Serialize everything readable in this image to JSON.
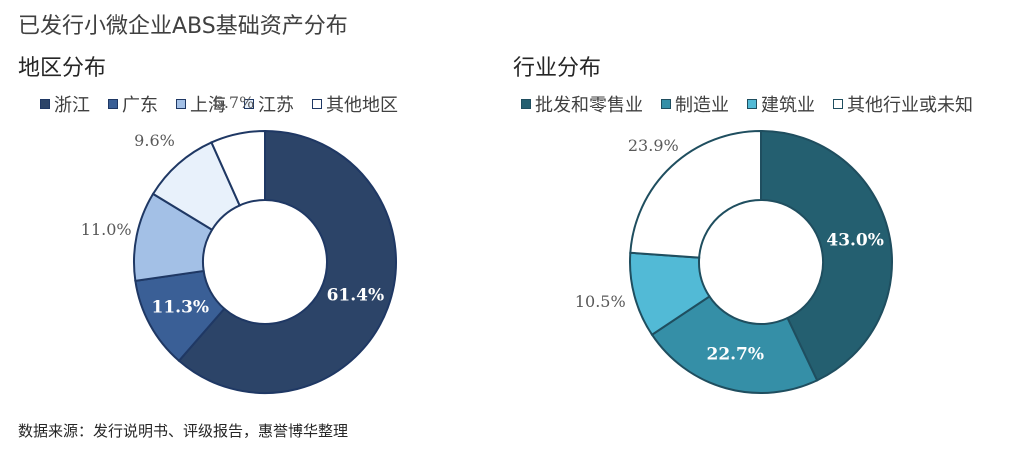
{
  "page": {
    "title": "已发行小微企业ABS基础资产分布",
    "source": "数据来源：发行说明书、评级报告，惠誉博华整理"
  },
  "chart_data": [
    {
      "type": "pie",
      "subtype": "donut",
      "title": "地区分布",
      "legend_position": "top",
      "categories": [
        "浙江",
        "广东",
        "上海",
        "江苏",
        "其他地区"
      ],
      "values": [
        61.4,
        11.3,
        11.0,
        9.6,
        6.7
      ],
      "value_labels": [
        "61.4%",
        "11.3%",
        "11.0%",
        "9.6%",
        "6.7%"
      ],
      "colors": [
        "#2c4468",
        "#3a5f96",
        "#a3c0e6",
        "#e8f1fb",
        "#ffffff"
      ],
      "label_inside": [
        true,
        true,
        false,
        false,
        false
      ]
    },
    {
      "type": "pie",
      "subtype": "donut",
      "title": "行业分布",
      "legend_position": "top",
      "categories": [
        "批发和零售业",
        "制造业",
        "建筑业",
        "其他行业或未知"
      ],
      "values": [
        43.0,
        22.7,
        10.5,
        23.9
      ],
      "value_labels": [
        "43.0%",
        "22.7%",
        "10.5%",
        "23.9%"
      ],
      "colors": [
        "#245f70",
        "#358fa7",
        "#52bad6",
        "#ffffff"
      ],
      "label_inside": [
        true,
        true,
        false,
        false
      ]
    }
  ]
}
